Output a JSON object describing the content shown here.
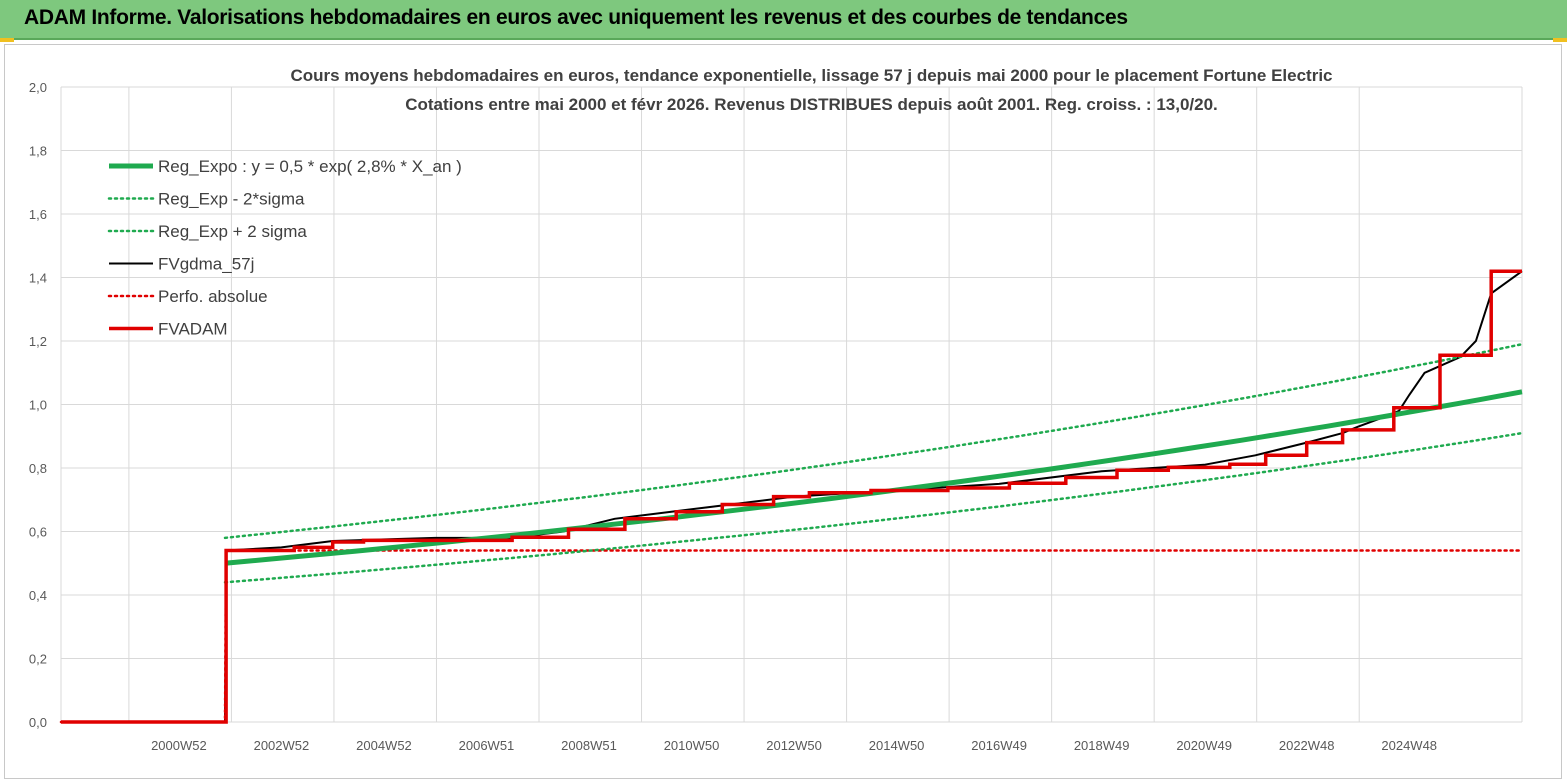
{
  "banner": {
    "title": "ADAM Informe. Valorisations hebdomadaires en euros avec uniquement les revenus et des courbes de tendances"
  },
  "colors": {
    "banner_bg": "#7ec87e",
    "reg_expo": "#1faa4f",
    "fvgdma": "#000000",
    "perfo": "#e00000",
    "fvadam": "#e00000",
    "grid": "#d9d9d9"
  },
  "chart_data": {
    "type": "line",
    "title_lines": [
      "Cours moyens hebdomadaires en euros, tendance exponentielle, lissage 57 j depuis mai 2000 pour le placement Fortune Electric",
      "Cotations entre mai 2000 et févr 2026. Revenus DISTRIBUES depuis août 2001. Reg. croiss. : 13,0/20."
    ],
    "xlabel": "",
    "ylabel": "",
    "ylim": [
      0,
      2
    ],
    "xlim": [
      1997.7,
      2026.2
    ],
    "y_ticks": [
      "0,0",
      "0,2",
      "0,4",
      "0,6",
      "0,8",
      "1,0",
      "1,2",
      "1,4",
      "1,6",
      "1,8",
      "2,0"
    ],
    "x_tick_labels": [
      {
        "label": "2000W52",
        "x": 2000.0
      },
      {
        "label": "2002W52",
        "x": 2002.0
      },
      {
        "label": "2004W52",
        "x": 2004.0
      },
      {
        "label": "2006W51",
        "x": 2006.0
      },
      {
        "label": "2008W51",
        "x": 2008.0
      },
      {
        "label": "2010W50",
        "x": 2010.0
      },
      {
        "label": "2012W50",
        "x": 2012.0
      },
      {
        "label": "2014W50",
        "x": 2014.0
      },
      {
        "label": "2016W49",
        "x": 2016.0
      },
      {
        "label": "2018W49",
        "x": 2018.0
      },
      {
        "label": "2020W49",
        "x": 2020.0
      },
      {
        "label": "2022W48",
        "x": 2022.0
      },
      {
        "label": "2024W48",
        "x": 2024.0
      }
    ],
    "grid": true,
    "legend_position": "top-left",
    "series": [
      {
        "name": "Reg_Expo : y = 0,5 * exp( 2,8% *  X_an )",
        "style": "solid-thick",
        "color": "#1faa4f",
        "x": [
          2000.9,
          2026.2
        ],
        "y": [
          0.5,
          1.04
        ]
      },
      {
        "name": "Reg_Exp - 2*sigma",
        "style": "dotted",
        "color": "#1faa4f",
        "x": [
          2000.9,
          2026.2
        ],
        "y": [
          0.44,
          0.91
        ]
      },
      {
        "name": "Reg_Exp + 2 sigma",
        "style": "dotted",
        "color": "#1faa4f",
        "x": [
          2000.9,
          2026.2
        ],
        "y": [
          0.58,
          1.19
        ]
      },
      {
        "name": "FVgdma_57j",
        "style": "solid",
        "color": "#000000",
        "x": [
          1997.7,
          2000.9,
          2000.92,
          2002.0,
          2003.0,
          2005.0,
          2006.5,
          2007.5,
          2008.5,
          2010.0,
          2012.0,
          2014.0,
          2016.0,
          2018.0,
          2020.0,
          2021.0,
          2022.0,
          2022.7,
          2023.0,
          2023.5,
          2023.8,
          2024.0,
          2024.3,
          2025.0,
          2025.3,
          2025.6,
          2026.2
        ],
        "y": [
          0,
          0,
          0.54,
          0.55,
          0.57,
          0.58,
          0.58,
          0.6,
          0.64,
          0.67,
          0.71,
          0.73,
          0.75,
          0.79,
          0.81,
          0.84,
          0.88,
          0.91,
          0.93,
          0.96,
          0.98,
          1.03,
          1.1,
          1.15,
          1.2,
          1.35,
          1.42
        ]
      },
      {
        "name": "Perfo. absolue",
        "style": "dotted",
        "color": "#e00000",
        "x": [
          1997.7,
          2000.9,
          2000.92,
          2026.2
        ],
        "y": [
          0,
          0,
          0.54,
          0.54
        ]
      },
      {
        "name": "FVADAM",
        "style": "step-thick",
        "color": "#e00000",
        "x": [
          1997.7,
          2000.9,
          2000.92,
          2002.25,
          2003.0,
          2003.6,
          2006.5,
          2007.6,
          2008.7,
          2009.7,
          2010.6,
          2011.6,
          2012.3,
          2013.5,
          2015.0,
          2016.2,
          2017.3,
          2018.3,
          2019.3,
          2020.5,
          2021.2,
          2022.0,
          2022.7,
          2023.7,
          2024.6,
          2025.6,
          2026.2
        ],
        "y": [
          0,
          0,
          0.54,
          0.55,
          0.567,
          0.572,
          0.582,
          0.607,
          0.64,
          0.662,
          0.685,
          0.71,
          0.722,
          0.729,
          0.737,
          0.752,
          0.77,
          0.793,
          0.802,
          0.812,
          0.84,
          0.88,
          0.92,
          0.99,
          1.155,
          1.42,
          1.42
        ]
      }
    ]
  }
}
